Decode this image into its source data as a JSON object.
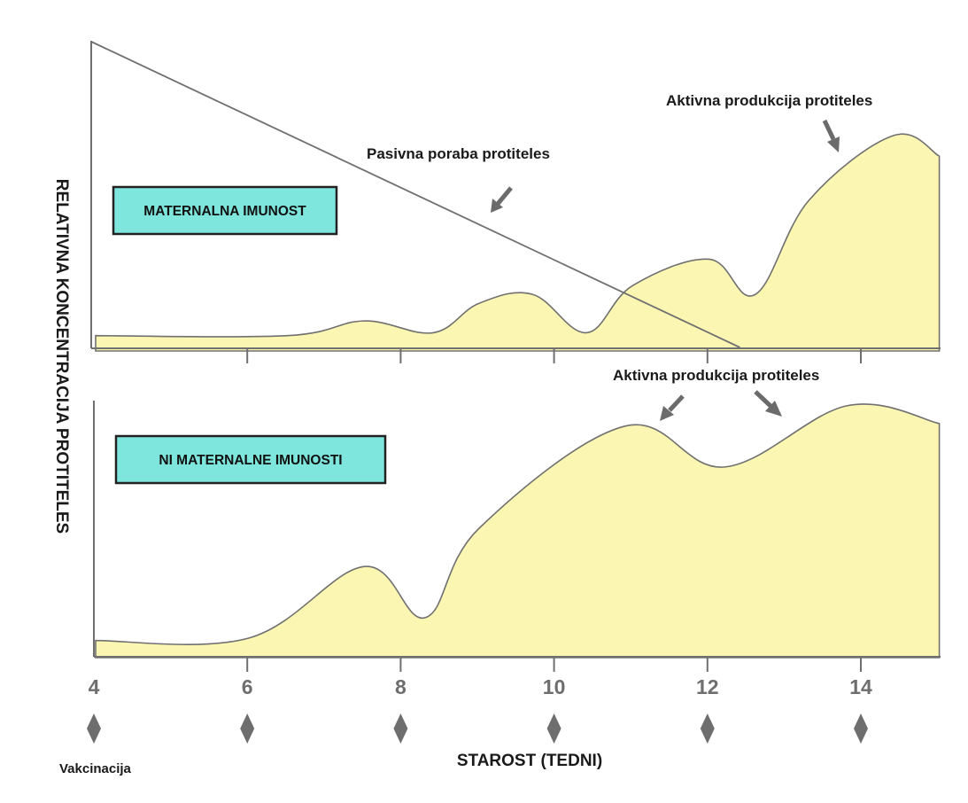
{
  "chart_data": {
    "type": "area",
    "ylabel": "RELATIVNA KONCENTRACIJA PROTITELES",
    "xlabel": "STAROST (TEDNI)",
    "xlim": [
      4,
      15
    ],
    "x_ticks": [
      4,
      6,
      8,
      10,
      12,
      14
    ],
    "vaccination_label": "Vakcinacija",
    "vaccination_weeks": [
      4,
      6,
      8,
      10,
      12,
      14
    ],
    "ylim": [
      0,
      100
    ],
    "panels": [
      {
        "label": "MATERNALNA IMUNOST",
        "annotations": [
          "Pasivna poraba protiteles",
          "Aktivna produkcija protiteles"
        ],
        "series": [
          {
            "x": [
              4.0,
              6.5,
              7.5,
              8.4,
              9.0,
              9.7,
              10.4,
              11.0,
              12.0,
              12.6,
              13.3,
              14.4,
              15.0
            ],
            "values": [
              4,
              4,
              9,
              5,
              15,
              18,
              5,
              21,
              30,
              18,
              50,
              72,
              65
            ]
          },
          {
            "x": [
              4.0,
              12.4
            ],
            "values": [
              100,
              0
            ]
          }
        ]
      },
      {
        "label": "NI MATERNALNE IMUNOSTI",
        "annotations": [
          "Aktivna produkcija protiteles"
        ],
        "series": [
          {
            "x": [
              4.0,
              6.0,
              7.5,
              8.3,
              9.0,
              10.9,
              12.2,
              13.8,
              15.0
            ],
            "values": [
              6,
              7,
              35,
              15,
              50,
              90,
              74,
              98,
              91
            ]
          }
        ]
      }
    ]
  }
}
